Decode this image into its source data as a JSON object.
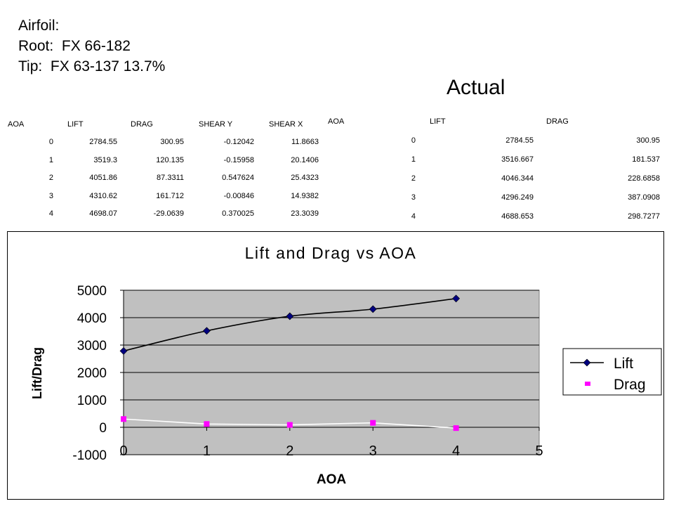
{
  "heading": {
    "line1": "Airfoil:",
    "line2": "Root:  FX 66-182",
    "line3": "Tip:  FX 63-137 13.7%"
  },
  "actual_label": "Actual",
  "computed_table": {
    "headers": [
      "AOA",
      "LIFT",
      "DRAG",
      "SHEAR Y",
      "SHEAR X"
    ],
    "rows": [
      [
        "0",
        "2784.55",
        "300.95",
        "-0.12042",
        "11.8663"
      ],
      [
        "1",
        "3519.3",
        "120.135",
        "-0.15958",
        "20.1406"
      ],
      [
        "2",
        "4051.86",
        "87.3311",
        "0.547624",
        "25.4323"
      ],
      [
        "3",
        "4310.62",
        "161.712",
        "-0.00846",
        "14.9382"
      ],
      [
        "4",
        "4698.07",
        "-29.0639",
        "0.370025",
        "23.3039"
      ]
    ]
  },
  "actual_table": {
    "headers": [
      "AOA",
      "LIFT",
      "DRAG"
    ],
    "rows": [
      [
        "0",
        "2784.55",
        "300.95"
      ],
      [
        "1",
        "3516.667",
        "181.537"
      ],
      [
        "2",
        "4046.344",
        "228.6858"
      ],
      [
        "3",
        "4296.249",
        "387.0908"
      ],
      [
        "4",
        "4688.653",
        "298.7277"
      ]
    ]
  },
  "chart_data": {
    "type": "line",
    "title": "Lift and Drag vs AOA",
    "xlabel": "AOA",
    "ylabel": "Lift/Drag",
    "xlim": [
      0,
      5
    ],
    "ylim": [
      -1000,
      5000
    ],
    "x_ticks": [
      0,
      1,
      2,
      3,
      4,
      5
    ],
    "y_ticks": [
      -1000,
      0,
      1000,
      2000,
      3000,
      4000,
      5000
    ],
    "x": [
      0,
      1,
      2,
      3,
      4
    ],
    "series": [
      {
        "name": "Lift",
        "values": [
          2784.55,
          3519.3,
          4051.86,
          4310.62,
          4698.07
        ],
        "color": "#00007f",
        "marker": "diamond"
      },
      {
        "name": "Drag",
        "values": [
          300.95,
          120.135,
          87.3311,
          161.712,
          -29.0639
        ],
        "color": "#ff00ff",
        "marker": "square",
        "line_color": "#ffffff"
      }
    ],
    "legend_position": "right",
    "plot_background": "#c0c0c0",
    "grid": "horizontal"
  }
}
